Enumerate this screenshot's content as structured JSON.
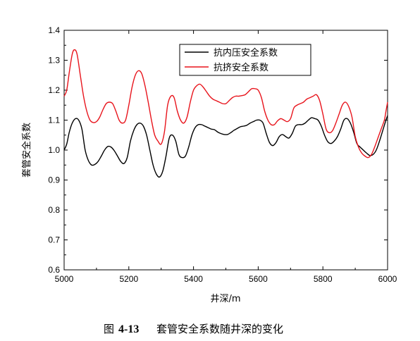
{
  "chart_data": {
    "type": "line",
    "xlabel": "井深/m",
    "ylabel": "套管安全系数",
    "xlim": [
      5000,
      6000
    ],
    "ylim": [
      0.6,
      1.4
    ],
    "xticks": [
      5000,
      5200,
      5400,
      5600,
      5800,
      6000
    ],
    "yticks": [
      "0.6",
      "0.7",
      "0.8",
      "0.9",
      "1.0",
      "1.1",
      "1.2",
      "1.3",
      "1.4"
    ],
    "grid": false,
    "legend_position": "top-center",
    "series": [
      {
        "name": "抗内压安全系数",
        "color": "#000000",
        "points": [
          [
            5000,
            1.0
          ],
          [
            5008,
            1.02
          ],
          [
            5016,
            1.06
          ],
          [
            5025,
            1.09
          ],
          [
            5035,
            1.105
          ],
          [
            5045,
            1.1
          ],
          [
            5055,
            1.07
          ],
          [
            5065,
            1.0
          ],
          [
            5075,
            0.965
          ],
          [
            5085,
            0.95
          ],
          [
            5095,
            0.952
          ],
          [
            5105,
            0.962
          ],
          [
            5115,
            0.98
          ],
          [
            5125,
            1.0
          ],
          [
            5135,
            1.012
          ],
          [
            5145,
            1.01
          ],
          [
            5155,
            0.998
          ],
          [
            5165,
            0.98
          ],
          [
            5175,
            0.962
          ],
          [
            5185,
            0.955
          ],
          [
            5195,
            0.975
          ],
          [
            5205,
            1.03
          ],
          [
            5215,
            1.065
          ],
          [
            5225,
            1.085
          ],
          [
            5235,
            1.09
          ],
          [
            5245,
            1.08
          ],
          [
            5255,
            1.05
          ],
          [
            5265,
            1.0
          ],
          [
            5275,
            0.95
          ],
          [
            5285,
            0.92
          ],
          [
            5295,
            0.91
          ],
          [
            5305,
            0.93
          ],
          [
            5315,
            0.98
          ],
          [
            5325,
            1.04
          ],
          [
            5335,
            1.05
          ],
          [
            5345,
            1.03
          ],
          [
            5355,
            0.985
          ],
          [
            5365,
            0.975
          ],
          [
            5375,
            0.98
          ],
          [
            5385,
            1.01
          ],
          [
            5395,
            1.05
          ],
          [
            5405,
            1.075
          ],
          [
            5415,
            1.085
          ],
          [
            5425,
            1.085
          ],
          [
            5435,
            1.08
          ],
          [
            5445,
            1.075
          ],
          [
            5455,
            1.07
          ],
          [
            5465,
            1.068
          ],
          [
            5475,
            1.06
          ],
          [
            5485,
            1.055
          ],
          [
            5495,
            1.052
          ],
          [
            5505,
            1.052
          ],
          [
            5515,
            1.058
          ],
          [
            5525,
            1.066
          ],
          [
            5535,
            1.072
          ],
          [
            5545,
            1.078
          ],
          [
            5555,
            1.08
          ],
          [
            5565,
            1.083
          ],
          [
            5575,
            1.09
          ],
          [
            5585,
            1.095
          ],
          [
            5595,
            1.1
          ],
          [
            5605,
            1.1
          ],
          [
            5615,
            1.09
          ],
          [
            5625,
            1.055
          ],
          [
            5635,
            1.025
          ],
          [
            5645,
            1.015
          ],
          [
            5655,
            1.025
          ],
          [
            5665,
            1.045
          ],
          [
            5675,
            1.052
          ],
          [
            5685,
            1.045
          ],
          [
            5695,
            1.04
          ],
          [
            5705,
            1.055
          ],
          [
            5715,
            1.08
          ],
          [
            5725,
            1.085
          ],
          [
            5735,
            1.085
          ],
          [
            5745,
            1.09
          ],
          [
            5755,
            1.1
          ],
          [
            5765,
            1.108
          ],
          [
            5775,
            1.105
          ],
          [
            5785,
            1.1
          ],
          [
            5795,
            1.08
          ],
          [
            5805,
            1.05
          ],
          [
            5815,
            1.028
          ],
          [
            5825,
            1.022
          ],
          [
            5835,
            1.03
          ],
          [
            5845,
            1.045
          ],
          [
            5855,
            1.07
          ],
          [
            5865,
            1.1
          ],
          [
            5875,
            1.105
          ],
          [
            5885,
            1.09
          ],
          [
            5895,
            1.06
          ],
          [
            5905,
            1.022
          ],
          [
            5915,
            1.01
          ],
          [
            5925,
            1.0
          ],
          [
            5935,
            0.99
          ],
          [
            5945,
            0.982
          ],
          [
            5955,
            0.985
          ],
          [
            5965,
            1.0
          ],
          [
            5975,
            1.03
          ],
          [
            5985,
            1.065
          ],
          [
            5995,
            1.1
          ],
          [
            6000,
            1.115
          ]
        ]
      },
      {
        "name": "抗挤安全系数",
        "color": "#e8141c",
        "points": [
          [
            5000,
            1.18
          ],
          [
            5008,
            1.2
          ],
          [
            5016,
            1.26
          ],
          [
            5025,
            1.32
          ],
          [
            5032,
            1.335
          ],
          [
            5040,
            1.32
          ],
          [
            5050,
            1.25
          ],
          [
            5060,
            1.18
          ],
          [
            5070,
            1.13
          ],
          [
            5080,
            1.1
          ],
          [
            5090,
            1.092
          ],
          [
            5100,
            1.095
          ],
          [
            5110,
            1.11
          ],
          [
            5120,
            1.135
          ],
          [
            5130,
            1.155
          ],
          [
            5140,
            1.16
          ],
          [
            5150,
            1.155
          ],
          [
            5160,
            1.13
          ],
          [
            5170,
            1.1
          ],
          [
            5180,
            1.09
          ],
          [
            5190,
            1.1
          ],
          [
            5200,
            1.15
          ],
          [
            5210,
            1.21
          ],
          [
            5220,
            1.25
          ],
          [
            5230,
            1.265
          ],
          [
            5240,
            1.255
          ],
          [
            5250,
            1.215
          ],
          [
            5260,
            1.16
          ],
          [
            5270,
            1.1
          ],
          [
            5280,
            1.05
          ],
          [
            5290,
            1.03
          ],
          [
            5300,
            1.02
          ],
          [
            5310,
            1.06
          ],
          [
            5320,
            1.15
          ],
          [
            5330,
            1.18
          ],
          [
            5340,
            1.175
          ],
          [
            5350,
            1.13
          ],
          [
            5360,
            1.1
          ],
          [
            5370,
            1.09
          ],
          [
            5380,
            1.11
          ],
          [
            5390,
            1.16
          ],
          [
            5400,
            1.2
          ],
          [
            5410,
            1.215
          ],
          [
            5420,
            1.22
          ],
          [
            5430,
            1.21
          ],
          [
            5440,
            1.195
          ],
          [
            5450,
            1.18
          ],
          [
            5460,
            1.17
          ],
          [
            5470,
            1.165
          ],
          [
            5480,
            1.16
          ],
          [
            5490,
            1.155
          ],
          [
            5500,
            1.155
          ],
          [
            5510,
            1.165
          ],
          [
            5520,
            1.175
          ],
          [
            5530,
            1.18
          ],
          [
            5540,
            1.18
          ],
          [
            5550,
            1.182
          ],
          [
            5560,
            1.185
          ],
          [
            5570,
            1.195
          ],
          [
            5580,
            1.205
          ],
          [
            5590,
            1.205
          ],
          [
            5600,
            1.2
          ],
          [
            5610,
            1.175
          ],
          [
            5620,
            1.13
          ],
          [
            5630,
            1.1
          ],
          [
            5640,
            1.085
          ],
          [
            5650,
            1.085
          ],
          [
            5660,
            1.098
          ],
          [
            5670,
            1.105
          ],
          [
            5680,
            1.1
          ],
          [
            5690,
            1.095
          ],
          [
            5700,
            1.105
          ],
          [
            5710,
            1.14
          ],
          [
            5720,
            1.15
          ],
          [
            5730,
            1.155
          ],
          [
            5740,
            1.16
          ],
          [
            5750,
            1.17
          ],
          [
            5760,
            1.175
          ],
          [
            5770,
            1.18
          ],
          [
            5780,
            1.185
          ],
          [
            5790,
            1.165
          ],
          [
            5800,
            1.12
          ],
          [
            5810,
            1.07
          ],
          [
            5820,
            1.058
          ],
          [
            5830,
            1.065
          ],
          [
            5840,
            1.09
          ],
          [
            5850,
            1.12
          ],
          [
            5860,
            1.15
          ],
          [
            5870,
            1.16
          ],
          [
            5880,
            1.145
          ],
          [
            5890,
            1.11
          ],
          [
            5900,
            1.045
          ],
          [
            5910,
            1.01
          ],
          [
            5920,
            0.99
          ],
          [
            5930,
            0.98
          ],
          [
            5940,
            0.975
          ],
          [
            5950,
            0.985
          ],
          [
            5960,
            1.01
          ],
          [
            5970,
            1.04
          ],
          [
            5980,
            1.07
          ],
          [
            5990,
            1.1
          ],
          [
            5995,
            1.13
          ],
          [
            6000,
            1.16
          ]
        ]
      }
    ]
  },
  "caption": {
    "prefix": "图",
    "number": "4-13",
    "text": "套管安全系数随井深的变化"
  }
}
